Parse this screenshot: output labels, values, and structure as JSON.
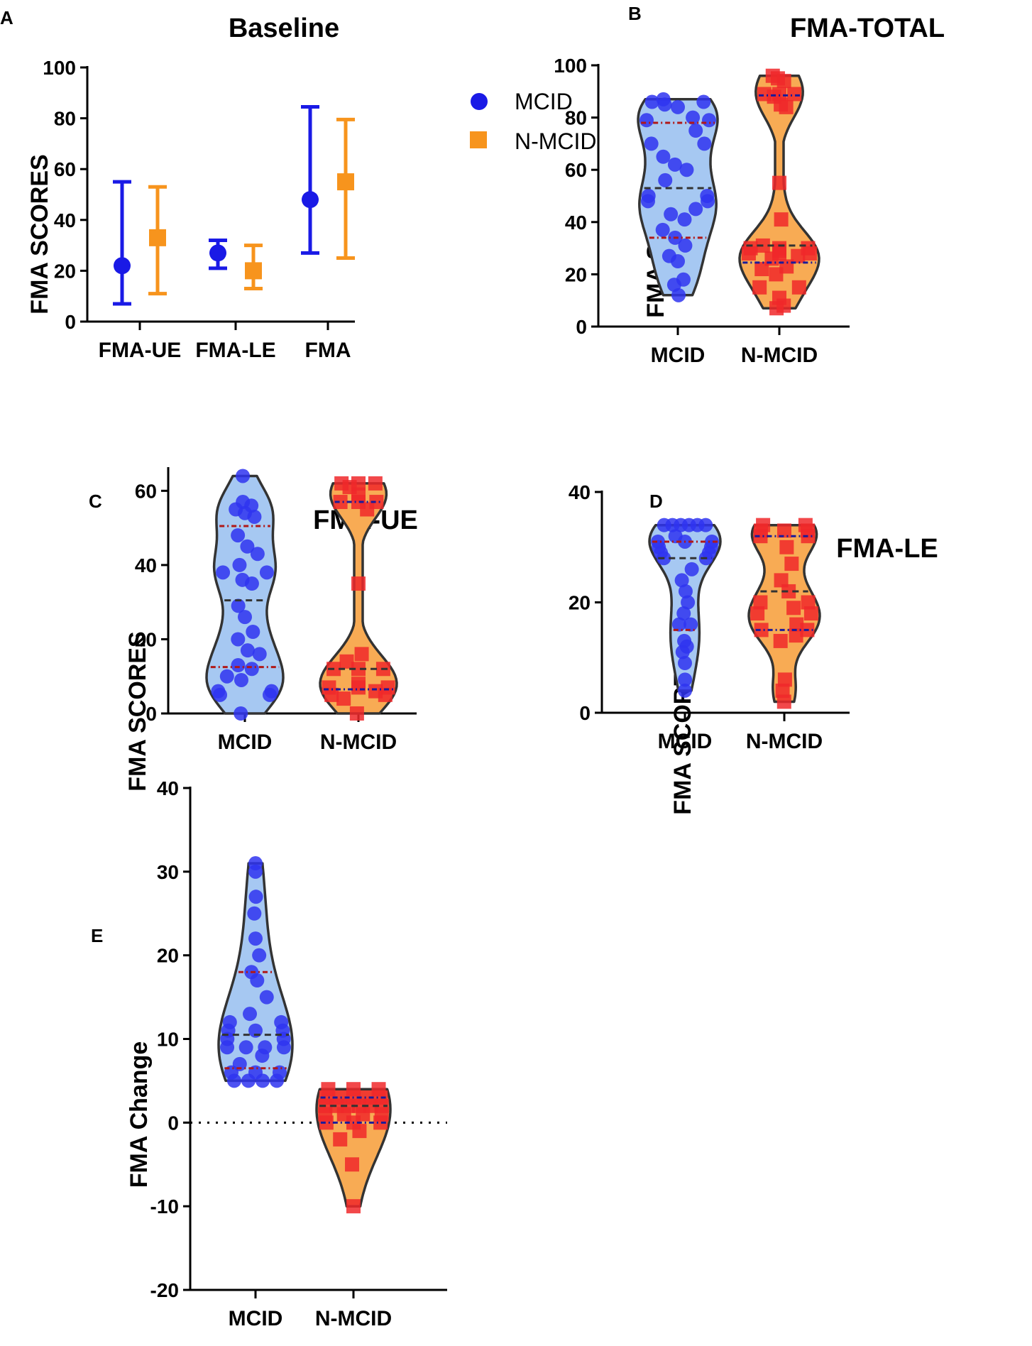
{
  "colors": {
    "mcid": "#1a1ae6",
    "nmcid": "#f7941d",
    "mcid_fill": "#a6c8f2",
    "nmcid_fill": "#f8ab54",
    "point_blue": "#2f34f0",
    "point_red": "#f0282a",
    "median_line": "#333333",
    "quartile_red": "#b01818",
    "quartile_blue": "#1a1a9a"
  },
  "chart_data": [
    {
      "id": "A",
      "letter": "A",
      "type": "errorbar",
      "title": "Baseline",
      "ylabel": "FMA SCORES",
      "ylim": [
        0,
        100
      ],
      "yticks": [
        0,
        20,
        40,
        60,
        80,
        100
      ],
      "categories": [
        "FMA-UE",
        "FMA-LE",
        "FMA"
      ],
      "legend": [
        "MCID",
        "N-MCID"
      ],
      "series": [
        {
          "name": "MCID",
          "marker": "circle",
          "mean": [
            22,
            27,
            48
          ],
          "lower": [
            7,
            21,
            27
          ],
          "upper": [
            55,
            32,
            84.5
          ]
        },
        {
          "name": "N-MCID",
          "marker": "square",
          "mean": [
            33,
            20,
            55
          ],
          "lower": [
            11,
            13,
            25
          ],
          "upper": [
            53,
            30,
            79.5
          ]
        }
      ]
    },
    {
      "id": "B",
      "letter": "B",
      "type": "violin",
      "title": "FMA-TOTAL",
      "ylabel": "FMA SCORES",
      "ylim": [
        0,
        100
      ],
      "yticks": [
        0,
        20,
        40,
        60,
        80,
        100
      ],
      "categories": [
        "MCID",
        "N-MCID"
      ],
      "groups": [
        {
          "name": "MCID",
          "min": 12,
          "max": 87,
          "median": 53,
          "q1": 34,
          "q3": 78,
          "points": [
            87,
            86,
            86,
            85,
            84,
            80,
            79,
            79,
            75,
            70,
            70,
            65,
            62,
            60,
            56,
            50,
            50,
            48,
            48,
            45,
            43,
            41,
            37,
            34,
            31,
            27,
            25,
            18,
            16,
            12
          ]
        },
        {
          "name": "N-MCID",
          "min": 7,
          "max": 96,
          "median": 31,
          "q1": 24.5,
          "q3": 88.5,
          "points": [
            96,
            95,
            94,
            89,
            89,
            89,
            88,
            85,
            84,
            55,
            41,
            31,
            30,
            30,
            30,
            29,
            28,
            28,
            28,
            27,
            26,
            23,
            22,
            20,
            15,
            15,
            11,
            8,
            7
          ]
        }
      ]
    },
    {
      "id": "C",
      "letter": "C",
      "type": "violin",
      "title": "FMA-UE",
      "ylabel": "FMA SCORES",
      "ylim": [
        0,
        66
      ],
      "yticks": [
        0,
        20,
        40,
        60
      ],
      "categories": [
        "MCID",
        "N-MCID"
      ],
      "groups": [
        {
          "name": "MCID",
          "min": 0,
          "max": 64,
          "median": 30.5,
          "q1": 12.5,
          "q3": 50.5,
          "points": [
            64,
            57,
            56,
            55,
            54,
            53,
            48,
            45,
            43,
            40,
            38,
            38,
            36,
            35,
            29,
            26,
            22,
            20,
            17,
            16,
            13,
            12,
            10,
            9,
            6,
            6,
            5,
            5,
            0
          ]
        },
        {
          "name": "N-MCID",
          "min": 0,
          "max": 62,
          "median": 12,
          "q1": 6.5,
          "q3": 57,
          "points": [
            62,
            62,
            62,
            61,
            59,
            57,
            57,
            57,
            55,
            35,
            16,
            14,
            12,
            12,
            12,
            8,
            7,
            7,
            7,
            6,
            5,
            5,
            4,
            0
          ]
        }
      ]
    },
    {
      "id": "D",
      "letter": "D",
      "type": "violin",
      "title": "FMA-LE",
      "ylabel": "FMA SCORES",
      "ylim": [
        0,
        40
      ],
      "yticks": [
        0,
        20,
        40
      ],
      "categories": [
        "MCID",
        "N-MCID"
      ],
      "groups": [
        {
          "name": "MCID",
          "min": 4,
          "max": 34,
          "median": 28,
          "q1": 15,
          "q3": 31,
          "points": [
            34,
            34,
            34,
            34,
            34,
            34,
            32,
            31,
            31,
            31,
            30,
            30,
            29,
            29,
            28,
            28,
            26,
            24,
            22,
            20,
            18,
            16,
            16,
            13,
            12,
            11,
            9,
            6,
            4
          ]
        },
        {
          "name": "N-MCID",
          "min": 2,
          "max": 34,
          "median": 22,
          "q1": 15,
          "q3": 32,
          "points": [
            34,
            34,
            33,
            33,
            33,
            32,
            32,
            30,
            27,
            24,
            22,
            20,
            20,
            19,
            18,
            18,
            16,
            15,
            15,
            14,
            13,
            6,
            4,
            2
          ]
        }
      ]
    },
    {
      "id": "E",
      "letter": "E",
      "type": "violin",
      "title": "",
      "ylabel": "FMA Change",
      "ylim": [
        -20,
        40
      ],
      "yticks": [
        -20,
        -10,
        0,
        10,
        20,
        30,
        40
      ],
      "categories": [
        "MCID",
        "N-MCID"
      ],
      "reference_line": 0,
      "groups": [
        {
          "name": "MCID",
          "min": 5,
          "max": 31,
          "median": 10.5,
          "q1": 6.5,
          "q3": 18,
          "points": [
            31,
            30,
            27,
            25,
            22,
            20,
            18,
            17,
            15,
            13,
            12,
            12,
            11,
            11,
            11,
            10,
            10,
            9,
            9,
            9,
            9,
            8,
            7,
            6,
            6,
            6,
            5,
            5,
            5,
            5
          ]
        },
        {
          "name": "N-MCID",
          "min": -10,
          "max": 4,
          "median": 2,
          "q1": 0,
          "q3": 3,
          "points": [
            4,
            4,
            4,
            3,
            3,
            3,
            3,
            3,
            2,
            2,
            2,
            2,
            2,
            2,
            1,
            1,
            1,
            1,
            0,
            0,
            0,
            -1,
            -2,
            -5,
            -10
          ]
        }
      ]
    }
  ]
}
